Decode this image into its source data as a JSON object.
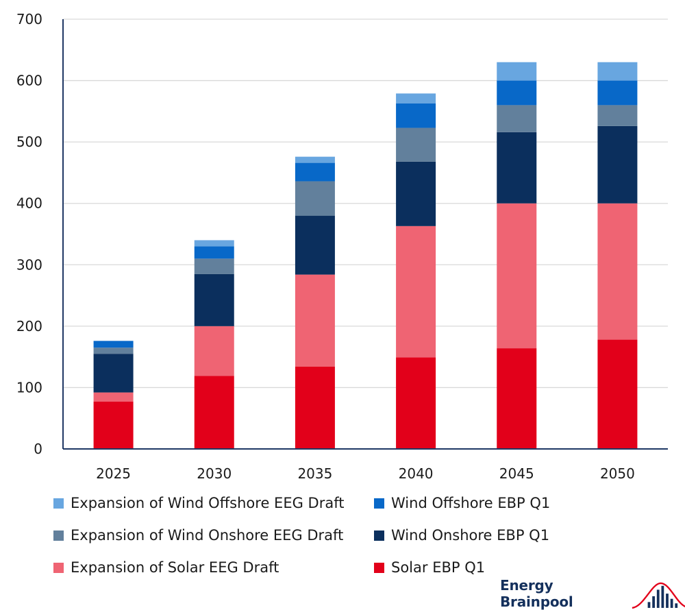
{
  "chart_data": {
    "type": "bar",
    "stacked": true,
    "categories": [
      "2025",
      "2030",
      "2035",
      "2040",
      "2045",
      "2050"
    ],
    "ylim": [
      0,
      700
    ],
    "yticks": [
      0,
      100,
      200,
      300,
      400,
      500,
      600,
      700
    ],
    "grid": true,
    "legend_position": "bottom",
    "series": [
      {
        "name": "Solar EBP Q1",
        "color": "#e2001a",
        "values": [
          77,
          119,
          134,
          149,
          164,
          178
        ]
      },
      {
        "name": "Expansion of Solar EEG Draft",
        "color": "#ef6473",
        "values": [
          15,
          81,
          150,
          214,
          236,
          222
        ]
      },
      {
        "name": "Wind Onshore EBP Q1",
        "color": "#0b2f5d",
        "values": [
          63,
          85,
          96,
          105,
          116,
          126
        ]
      },
      {
        "name": "Expansion of Wind Onshore EEG Draft",
        "color": "#62809c",
        "values": [
          10,
          25,
          56,
          55,
          44,
          34
        ]
      },
      {
        "name": "Wind Offshore EBP Q1",
        "color": "#0868c8",
        "values": [
          11,
          20,
          30,
          40,
          40,
          40
        ]
      },
      {
        "name": "Expansion of Wind Offshore EEG Draft",
        "color": "#68a6e0",
        "values": [
          0,
          10,
          10,
          16,
          30,
          30
        ]
      }
    ]
  },
  "legend_order": [
    "Expansion of Wind Offshore EEG Draft",
    "Wind Offshore EBP Q1",
    "Expansion of Wind Onshore EEG Draft",
    "Wind Onshore EBP Q1",
    "Expansion of Solar EEG Draft",
    "Solar EBP Q1"
  ],
  "brand": {
    "name": "Energy Brainpool",
    "logo_icon": "bar-curve-logo-icon"
  }
}
